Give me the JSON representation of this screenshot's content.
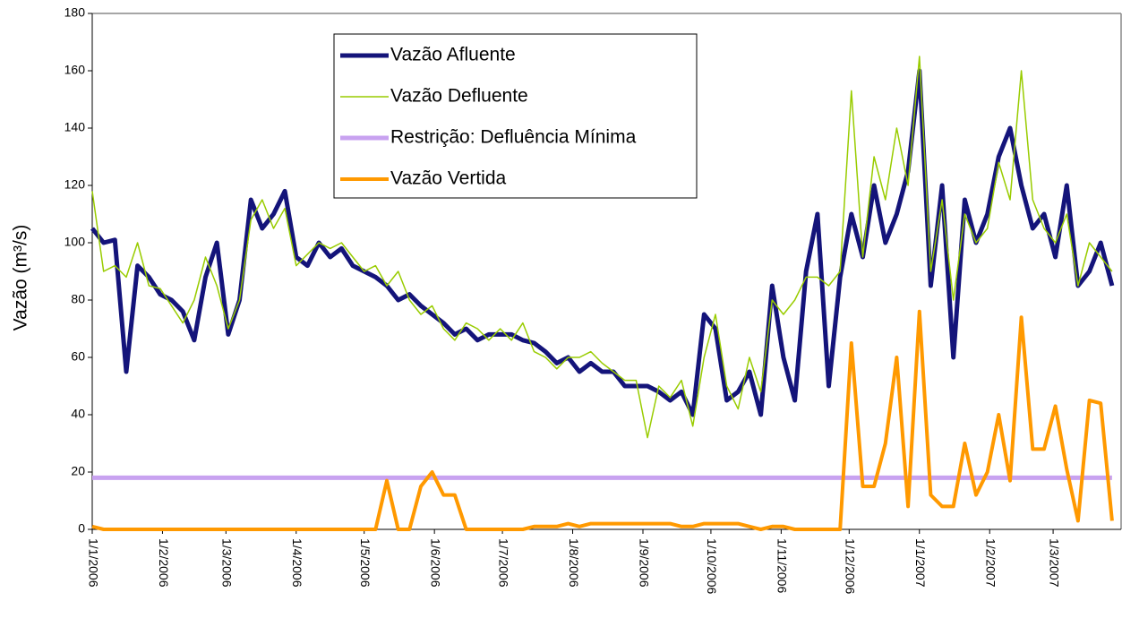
{
  "chart_data": {
    "type": "line",
    "y_label": "Vazão (m³/s)",
    "x": [
      0,
      5,
      10,
      15,
      20,
      25,
      30,
      35,
      40,
      45,
      50,
      55,
      60,
      65,
      70,
      75,
      80,
      85,
      90,
      95,
      100,
      105,
      110,
      115,
      120,
      125,
      130,
      135,
      140,
      145,
      150,
      155,
      160,
      165,
      170,
      175,
      180,
      185,
      190,
      195,
      200,
      205,
      210,
      215,
      220,
      225,
      230,
      235,
      240,
      245,
      250,
      255,
      260,
      265,
      270,
      275,
      280,
      285,
      290,
      295,
      300,
      305,
      310,
      315,
      320,
      325,
      330,
      335,
      340,
      345,
      350,
      355,
      360,
      365,
      370,
      375,
      380,
      385,
      390,
      395,
      400,
      405,
      410,
      415,
      420,
      425,
      430,
      435,
      440,
      445,
      450
    ],
    "xlim": [
      0,
      454
    ],
    "xticks": [
      {
        "value": 0,
        "label": "1/1/2006"
      },
      {
        "value": 31,
        "label": "1/2/2006"
      },
      {
        "value": 59,
        "label": "1/3/2006"
      },
      {
        "value": 90,
        "label": "1/4/2006"
      },
      {
        "value": 120,
        "label": "1/5/2006"
      },
      {
        "value": 151,
        "label": "1/6/2006"
      },
      {
        "value": 181,
        "label": "1/7/2006"
      },
      {
        "value": 212,
        "label": "1/8/2006"
      },
      {
        "value": 243,
        "label": "1/9/2006"
      },
      {
        "value": 273,
        "label": "1/10/2006"
      },
      {
        "value": 304,
        "label": "1/11/2006"
      },
      {
        "value": 334,
        "label": "1/12/2006"
      },
      {
        "value": 365,
        "label": "1/1/2007"
      },
      {
        "value": 396,
        "label": "1/2/2007"
      },
      {
        "value": 424,
        "label": "1/3/2007"
      }
    ],
    "ylim": [
      0,
      180
    ],
    "yticks": [
      0,
      20,
      40,
      60,
      80,
      100,
      120,
      140,
      160,
      180
    ],
    "series": [
      {
        "name": "Vazão Afluente",
        "color": "#14147a",
        "width": 5,
        "values": [
          105,
          100,
          101,
          55,
          92,
          88,
          82,
          80,
          76,
          66,
          88,
          100,
          68,
          80,
          115,
          105,
          110,
          118,
          95,
          92,
          100,
          95,
          98,
          92,
          90,
          88,
          85,
          80,
          82,
          78,
          75,
          72,
          68,
          70,
          66,
          68,
          68,
          68,
          66,
          65,
          62,
          58,
          60,
          55,
          58,
          55,
          55,
          50,
          50,
          50,
          48,
          45,
          48,
          40,
          75,
          70,
          45,
          48,
          55,
          40,
          85,
          60,
          45,
          90,
          110,
          50,
          88,
          110,
          95,
          120,
          100,
          110,
          125,
          160,
          85,
          120,
          60,
          115,
          100,
          110,
          130,
          140,
          120,
          105,
          110,
          95,
          120,
          85,
          90,
          100,
          85
        ]
      },
      {
        "name": "Vazão Defluente",
        "color": "#99cc00",
        "width": 1.5,
        "values": [
          118,
          90,
          92,
          88,
          100,
          85,
          84,
          78,
          72,
          80,
          95,
          85,
          70,
          80,
          108,
          115,
          105,
          112,
          92,
          96,
          100,
          98,
          100,
          95,
          90,
          92,
          85,
          90,
          80,
          75,
          78,
          70,
          66,
          72,
          70,
          66,
          70,
          66,
          72,
          62,
          60,
          56,
          60,
          60,
          62,
          58,
          55,
          52,
          52,
          32,
          50,
          46,
          52,
          36,
          60,
          75,
          50,
          42,
          60,
          48,
          80,
          75,
          80,
          88,
          88,
          85,
          90,
          153,
          95,
          130,
          115,
          140,
          120,
          165,
          90,
          115,
          80,
          110,
          100,
          105,
          128,
          115,
          160,
          115,
          105,
          100,
          110,
          85,
          100,
          95,
          90
        ]
      },
      {
        "name": "Restrição: Defluência Mínima",
        "color": "#c8a2f0",
        "width": 5,
        "values": [
          18,
          18,
          18,
          18,
          18,
          18,
          18,
          18,
          18,
          18,
          18,
          18,
          18,
          18,
          18,
          18,
          18,
          18,
          18,
          18,
          18,
          18,
          18,
          18,
          18,
          18,
          18,
          18,
          18,
          18,
          18,
          18,
          18,
          18,
          18,
          18,
          18,
          18,
          18,
          18,
          18,
          18,
          18,
          18,
          18,
          18,
          18,
          18,
          18,
          18,
          18,
          18,
          18,
          18,
          18,
          18,
          18,
          18,
          18,
          18,
          18,
          18,
          18,
          18,
          18,
          18,
          18,
          18,
          18,
          18,
          18,
          18,
          18,
          18,
          18,
          18,
          18,
          18,
          18,
          18,
          18,
          18,
          18,
          18,
          18,
          18,
          18,
          18,
          18,
          18,
          18
        ]
      },
      {
        "name": "Vazão Vertida",
        "color": "#ff9900",
        "width": 4,
        "values": [
          1,
          0,
          0,
          0,
          0,
          0,
          0,
          0,
          0,
          0,
          0,
          0,
          0,
          0,
          0,
          0,
          0,
          0,
          0,
          0,
          0,
          0,
          0,
          0,
          0,
          0,
          17,
          0,
          0,
          15,
          20,
          12,
          12,
          0,
          0,
          0,
          0,
          0,
          0,
          1,
          1,
          1,
          2,
          1,
          2,
          2,
          2,
          2,
          2,
          2,
          2,
          2,
          1,
          1,
          2,
          2,
          2,
          2,
          1,
          0,
          1,
          1,
          0,
          0,
          0,
          0,
          0,
          65,
          15,
          15,
          30,
          60,
          8,
          76,
          12,
          8,
          8,
          30,
          12,
          20,
          40,
          17,
          74,
          28,
          28,
          43,
          21,
          3,
          45,
          44,
          3
        ]
      }
    ]
  }
}
